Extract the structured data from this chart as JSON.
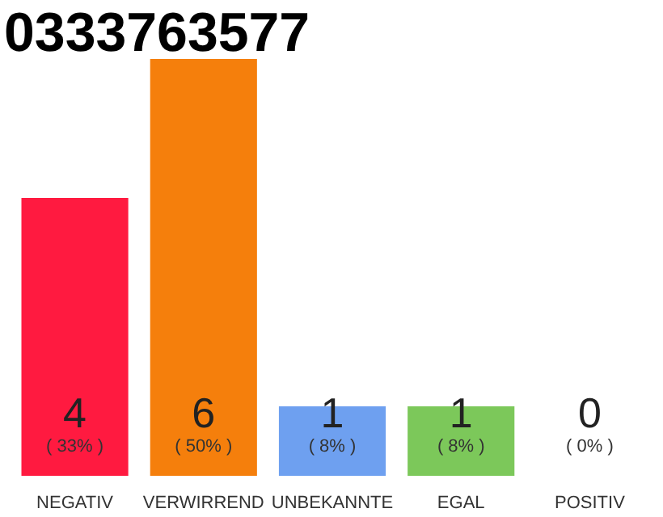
{
  "chart_data": {
    "type": "bar",
    "title": "0333763577",
    "categories": [
      "NEGATIV",
      "VERWIRREND",
      "UNBEKANNTE",
      "EGAL",
      "POSITIV"
    ],
    "tick_labels": "x",
    "series": [
      {
        "colors": [
          "#ff1a40",
          "#f57f0c",
          "#6ea0f0",
          "#7cc85a",
          "#7cc85a"
        ],
        "values": [
          4,
          6,
          1,
          1,
          0
        ],
        "value_labels": [
          "4",
          "6",
          "1",
          "1",
          "0"
        ]
      }
    ],
    "annotations": [
      "( 33% )",
      "( 50% )",
      "( 8% )",
      "( 8% )",
      "( 0% )"
    ]
  }
}
